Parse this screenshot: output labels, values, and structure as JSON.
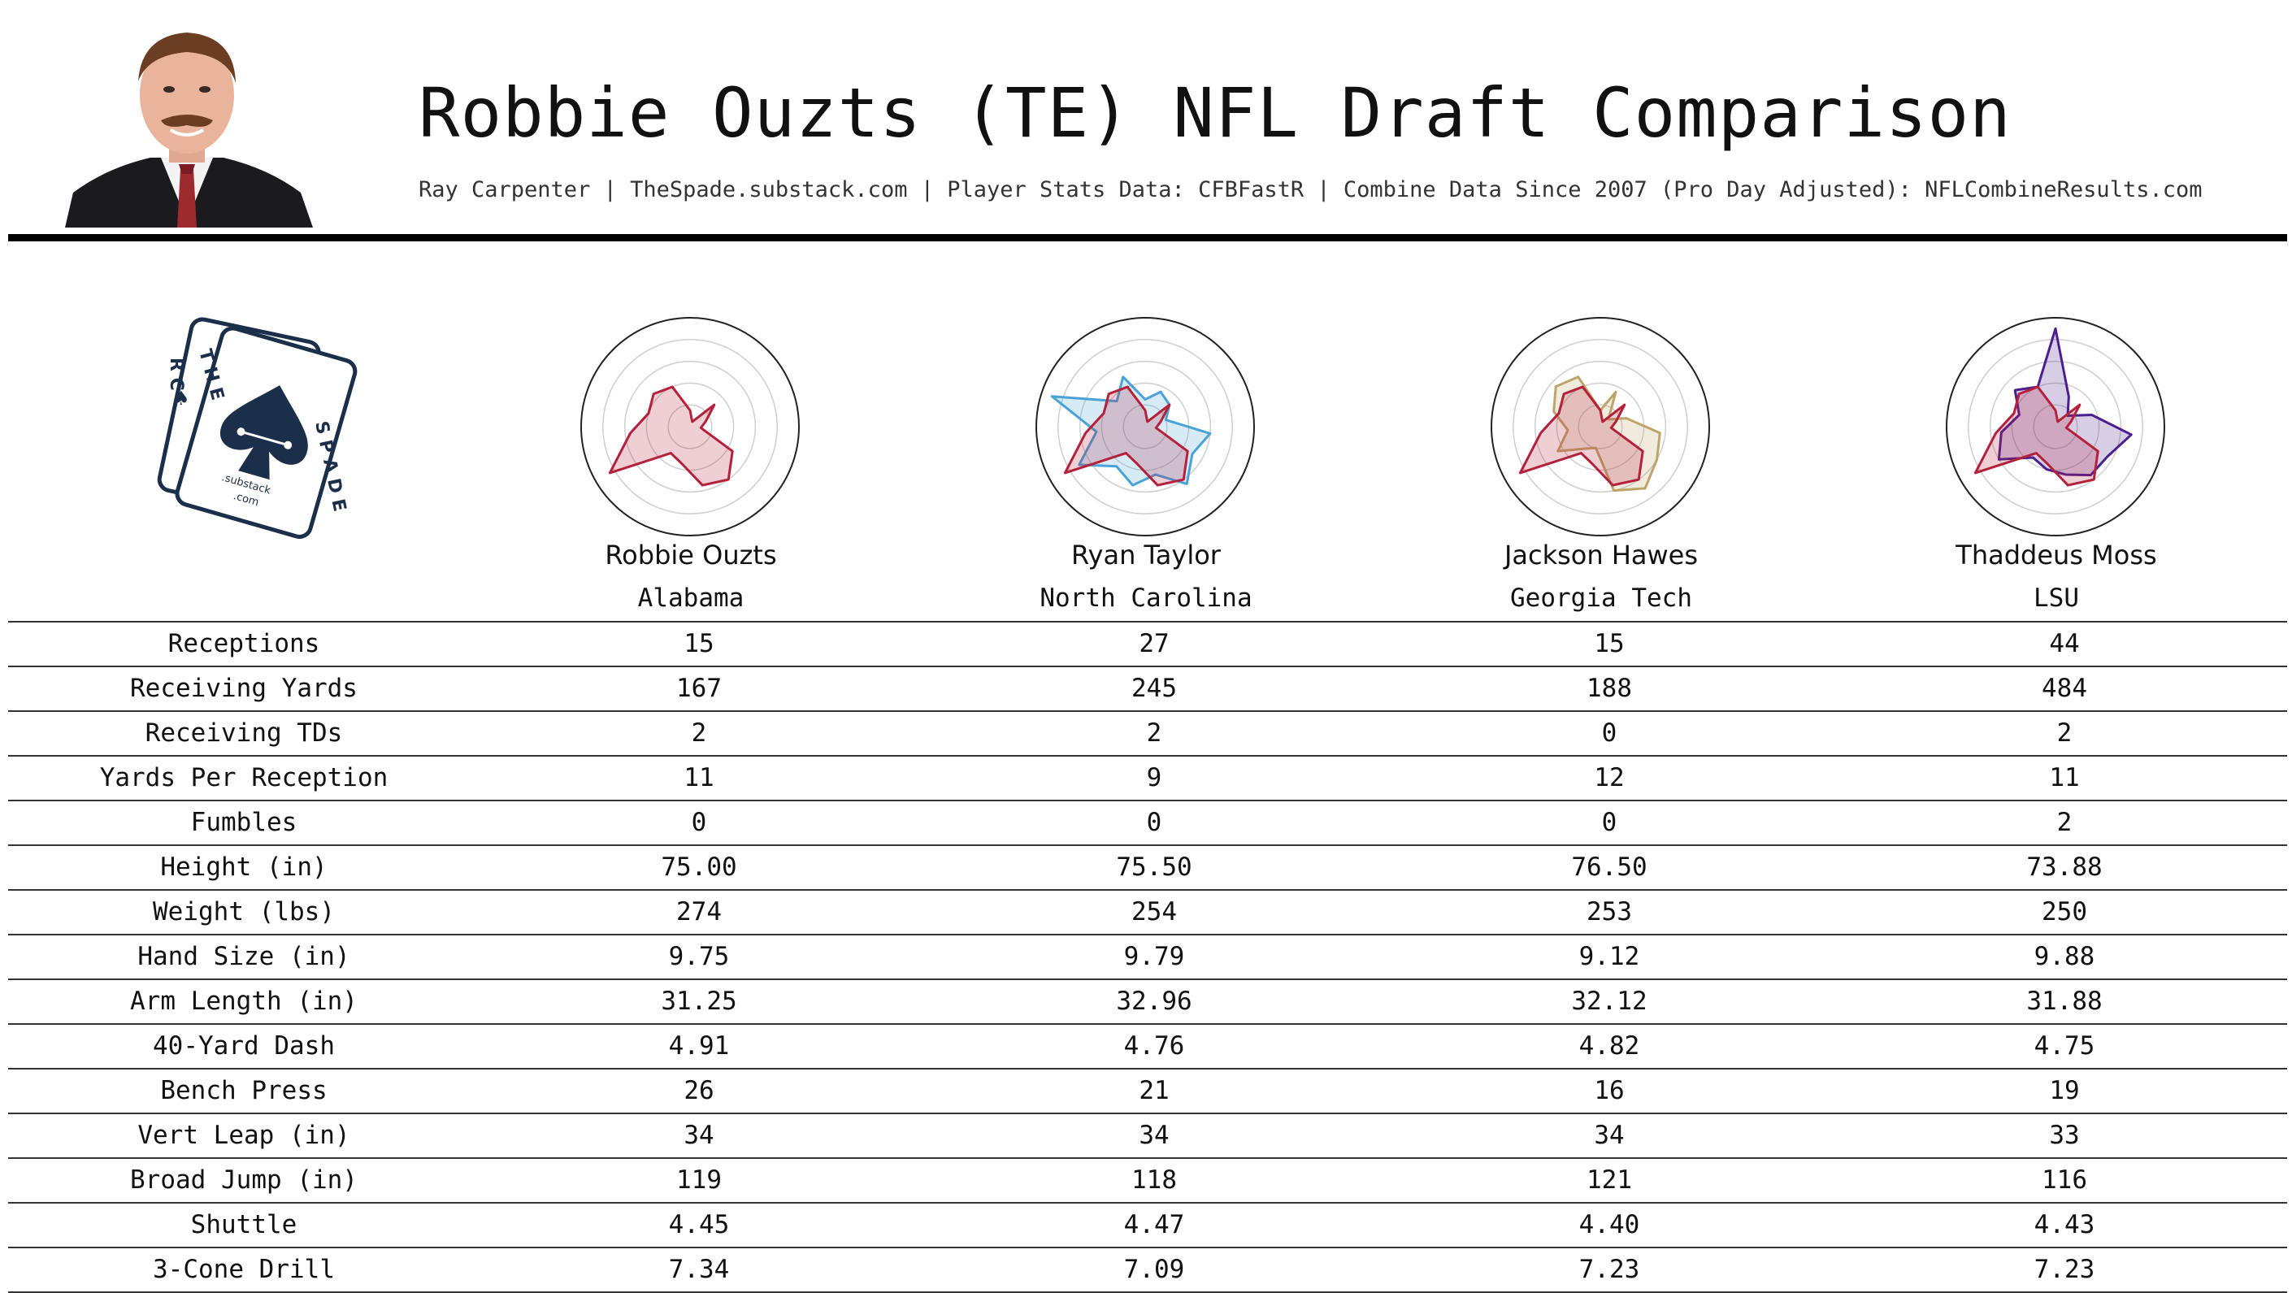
{
  "header": {
    "title": "Robbie Ouzts (TE) NFL Draft Comparison",
    "subtitle": "Ray Carpenter | TheSpade.substack.com | Player Stats Data: CFBFastR | Combine Data Since 2007 (Pro Day Adjusted): NFLCombineResults.com"
  },
  "logo": {
    "letters_top": "R C",
    "letters_the": "T H E",
    "letters_spade": "S P A D E",
    "sub": ".substack",
    "com": ".com"
  },
  "colors": {
    "ouzts": "#b5203a",
    "taylor": "#4aa3d8",
    "hawes": "#bfa46a",
    "moss": "#4b1f8f"
  },
  "players": [
    {
      "name": "Robbie Ouzts",
      "school": "Alabama"
    },
    {
      "name": "Ryan Taylor",
      "school": "North Carolina"
    },
    {
      "name": "Jackson Hawes",
      "school": "Georgia Tech"
    },
    {
      "name": "Thaddeus Moss",
      "school": "LSU"
    }
  ],
  "chart_data": {
    "type": "table",
    "columns": [
      "Robbie Ouzts",
      "Ryan Taylor",
      "Jackson Hawes",
      "Thaddeus Moss"
    ],
    "rows": [
      {
        "label": "Receptions",
        "values": [
          "15",
          "27",
          "15",
          "44"
        ]
      },
      {
        "label": "Receiving Yards",
        "values": [
          "167",
          "245",
          "188",
          "484"
        ]
      },
      {
        "label": "Receiving TDs",
        "values": [
          "2",
          "2",
          "0",
          "2"
        ]
      },
      {
        "label": "Yards Per Reception",
        "values": [
          "11",
          "9",
          "12",
          "11"
        ]
      },
      {
        "label": "Fumbles",
        "values": [
          "0",
          "0",
          "0",
          "2"
        ]
      },
      {
        "label": "Height (in)",
        "values": [
          "75.00",
          "75.50",
          "76.50",
          "73.88"
        ]
      },
      {
        "label": "Weight (lbs)",
        "values": [
          "274",
          "254",
          "253",
          "250"
        ]
      },
      {
        "label": "Hand Size (in)",
        "values": [
          "9.75",
          "9.79",
          "9.12",
          "9.88"
        ]
      },
      {
        "label": "Arm Length (in)",
        "values": [
          "31.25",
          "32.96",
          "32.12",
          "31.88"
        ]
      },
      {
        "label": "40-Yard Dash",
        "values": [
          "4.91",
          "4.76",
          "4.82",
          "4.75"
        ]
      },
      {
        "label": "Bench Press",
        "values": [
          "26",
          "21",
          "16",
          "19"
        ]
      },
      {
        "label": "Vert Leap (in)",
        "values": [
          "34",
          "34",
          "34",
          "33"
        ]
      },
      {
        "label": "Broad Jump (in)",
        "values": [
          "119",
          "118",
          "121",
          "116"
        ]
      },
      {
        "label": "Shuttle",
        "values": [
          "4.45",
          "4.47",
          "4.40",
          "4.43"
        ]
      },
      {
        "label": "3-Cone Drill",
        "values": [
          "7.34",
          "7.09",
          "7.23",
          "7.23"
        ]
      }
    ],
    "radar": {
      "type": "radar",
      "axes": 15,
      "rmax": 1,
      "series": [
        {
          "player": "Robbie Ouzts",
          "color": "#b5203a",
          "values": [
            0.15,
            0.05,
            0.3,
            0.15,
            0.1,
            0.45,
            0.6,
            0.55,
            0.35,
            0.3,
            0.85,
            0.55,
            0.4,
            0.45,
            0.4
          ]
        },
        {
          "player": "Ryan Taylor",
          "color": "#4aa3d8",
          "values": [
            0.25,
            0.35,
            0.3,
            0.2,
            0.6,
            0.5,
            0.65,
            0.45,
            0.55,
            0.45,
            0.7,
            0.45,
            0.9,
            0.35,
            0.5
          ]
        },
        {
          "player": "Jackson Hawes",
          "color": "#bfa46a",
          "values": [
            0.15,
            0.35,
            0.1,
            0.25,
            0.55,
            0.6,
            0.7,
            0.6,
            0.2,
            0.25,
            0.45,
            0.3,
            0.45,
            0.55,
            0.5
          ]
        },
        {
          "player": "Thaddeus Moss",
          "color": "#4b1f8f",
          "values": [
            0.9,
            0.3,
            0.15,
            0.35,
            0.7,
            0.55,
            0.55,
            0.45,
            0.4,
            0.35,
            0.6,
            0.5,
            0.35,
            0.5,
            0.4
          ]
        }
      ]
    }
  }
}
